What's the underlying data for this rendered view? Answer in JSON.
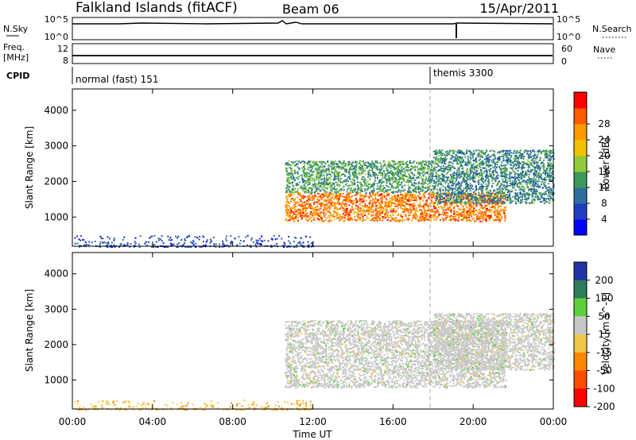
{
  "header": {
    "station": "Falkland Islands (fitACF)",
    "beam": "Beam 06",
    "date": "15/Apr/2011"
  },
  "params": {
    "nsky_label": "N.Sky",
    "nsky_ticks": [
      "10^5",
      "10^0"
    ],
    "nsearch_label": "N.Search",
    "freq_label": "Freq.",
    "freq_unit": "[MHz]",
    "freq_ticks": [
      "12",
      "8"
    ],
    "nave_label": "Nave",
    "nave_ticks": [
      "60",
      "0"
    ],
    "cpid_label": "CPID",
    "cpid_segments": [
      {
        "label": "normal (fast) 151",
        "start_hour": 0
      },
      {
        "label": "themis 3300",
        "start_hour": 18
      }
    ]
  },
  "time_axis": {
    "label": "Time UT",
    "ticks": [
      "00:00",
      "04:00",
      "08:00",
      "12:00",
      "16:00",
      "20:00",
      "00:00"
    ],
    "tick_hours": [
      0,
      4,
      8,
      12,
      16,
      20,
      24
    ],
    "range_hours": [
      0,
      24
    ]
  },
  "chart_data": [
    {
      "type": "heatmap",
      "name": "power",
      "ylabel": "Slant Range [km]",
      "yticks": [
        1000,
        2000,
        3000,
        4000
      ],
      "ylim": [
        180,
        4600
      ],
      "xlim_hours": [
        0,
        24
      ],
      "colorbar": {
        "label": "Power [dB]",
        "ticks": [
          "4",
          "8",
          "12",
          "16",
          "20",
          "24",
          "28"
        ],
        "tick_values": [
          4,
          8,
          12,
          16,
          20,
          24,
          28
        ],
        "range": [
          0,
          32
        ],
        "colors": [
          "#0000ff",
          "#1f3fc0",
          "#2f6fa0",
          "#3b9a5a",
          "#8fcb3a",
          "#f2c200",
          "#ff9a00",
          "#ff5a00",
          "#ff0000"
        ]
      },
      "regions": [
        {
          "hours": [
            10.6,
            21.6
          ],
          "range_km": [
            900,
            1700
          ],
          "value_db": 26
        },
        {
          "hours": [
            10.6,
            18.0
          ],
          "range_km": [
            1700,
            2600
          ],
          "value_db": 12
        },
        {
          "hours": [
            18.0,
            24.0
          ],
          "range_km": [
            1400,
            2900
          ],
          "value_db": 10
        },
        {
          "hours": [
            0.0,
            12.0
          ],
          "range_km": [
            180,
            500
          ],
          "value_db": 5
        }
      ]
    },
    {
      "type": "heatmap",
      "name": "velocity",
      "ylabel": "Slant Range [km]",
      "yticks": [
        1000,
        2000,
        3000,
        4000
      ],
      "ylim": [
        180,
        4600
      ],
      "xlim_hours": [
        0,
        24
      ],
      "colorbar": {
        "label": "Velocity [m s^-1]",
        "ticks": [
          "200",
          "100",
          "50",
          "15",
          "-15",
          "-50",
          "-100",
          "-200"
        ],
        "tick_values": [
          200,
          100,
          50,
          15,
          -15,
          -50,
          -100,
          -200
        ],
        "colors": [
          "#2233aa",
          "#2e7d5b",
          "#5cd13a",
          "#c8c8c8",
          "#f3c84a",
          "#ff8800",
          "#ff4d00",
          "#ff0000"
        ]
      },
      "regions": [
        {
          "hours": [
            10.6,
            21.6
          ],
          "range_km": [
            800,
            2700
          ],
          "value_ms": 0
        },
        {
          "hours": [
            18.0,
            24.0
          ],
          "range_km": [
            1300,
            2900
          ],
          "value_ms": 0
        },
        {
          "hours": [
            0.0,
            12.0
          ],
          "range_km": [
            180,
            450
          ],
          "value_ms": -30
        }
      ]
    }
  ]
}
